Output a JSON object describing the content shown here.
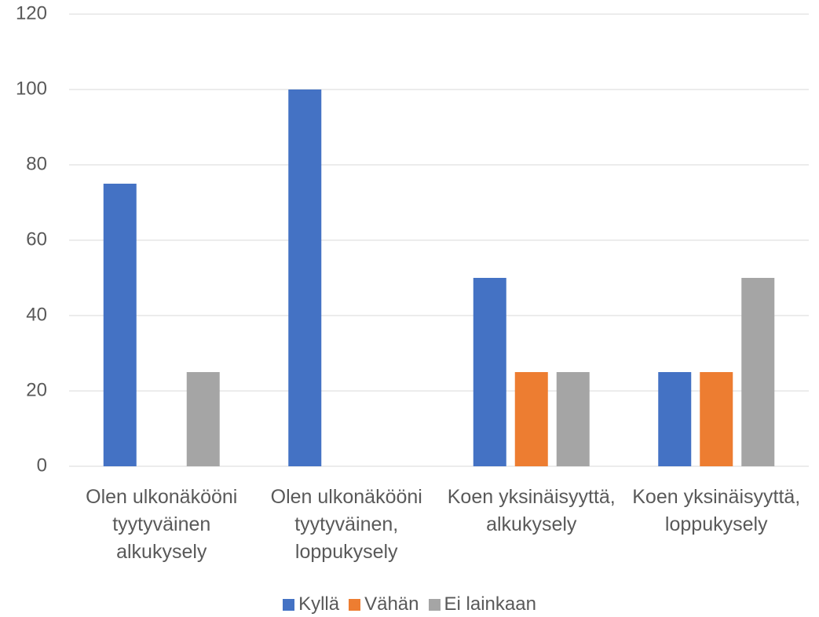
{
  "chart_data": {
    "type": "bar",
    "categories": [
      "Olen ulkonäkööni tyytyväinen alkukysely",
      "Olen ulkonäkööni tyytyväinen, loppukysely",
      "Koen yksinäisyyttä, alkukysely",
      "Koen yksinäisyyttä, loppukysely"
    ],
    "series": [
      {
        "name": "Kyllä",
        "color": "#4472c4",
        "values": [
          75,
          100,
          50,
          25
        ]
      },
      {
        "name": "Vähän",
        "color": "#ed7d31",
        "values": [
          0,
          0,
          25,
          25
        ]
      },
      {
        "name": "Ei lainkaan",
        "color": "#a5a5a5",
        "values": [
          25,
          0,
          25,
          50
        ]
      }
    ],
    "ylim": [
      0,
      120
    ],
    "yticks": [
      0,
      20,
      40,
      60,
      80,
      100,
      120
    ],
    "grid": true,
    "legend": "bottom"
  }
}
